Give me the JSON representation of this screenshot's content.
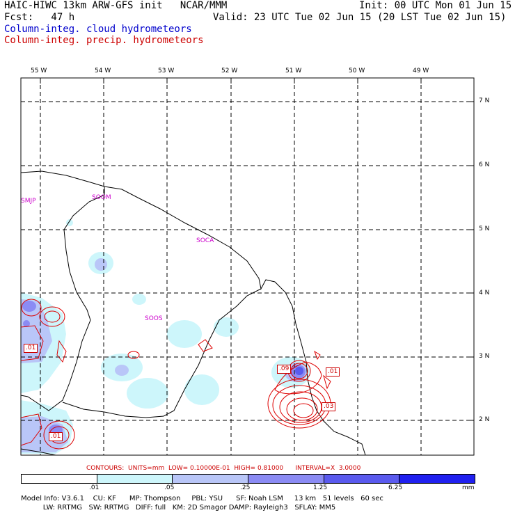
{
  "header": {
    "model": "HAIC-HIWC 13km ARW-GFS init   NCAR/MMM",
    "init": "Init: 00 UTC Mon 01 Jun 15",
    "fcst": "Fcst:   47 h",
    "valid": "Valid: 23 UTC Tue 02 Jun 15 (20 LST Tue 02 Jun 15)",
    "field1": "Column-integ. cloud hydrometeors",
    "field2": "Column-integ. precip. hydrometeors",
    "field1_color": "#0000cc",
    "field2_color": "#cc0000"
  },
  "axes": {
    "lon_labels": [
      "55 W",
      "54 W",
      "53 W",
      "52 W",
      "51 W",
      "50 W",
      "49 W"
    ],
    "lat_labels": [
      "7 N",
      "6 N",
      "5 N",
      "4 N",
      "3 N",
      "2 N"
    ]
  },
  "stations": [
    "SMJP",
    "SOOM",
    "SOCA",
    "SOOS"
  ],
  "contour_labels": [
    ".01",
    ".09",
    ".01",
    ".03",
    ".01"
  ],
  "contour_info": "CONTOURS:  UNITS=mm  LOW= 0.10000E-01  HIGH= 0.81000      INTERVAL=X  3.0000",
  "colorbar": {
    "ticks": [
      ".01",
      ".05",
      ".25",
      "1.25",
      "6.25"
    ],
    "units": "mm",
    "colors": [
      "#ffffff",
      "#cdf6fb",
      "#b9c6f8",
      "#8b8bf4",
      "#5a5aee",
      "#2020f0"
    ]
  },
  "footer": {
    "line1": "Model Info: V3.6.1    CU: KF      MP: Thompson     PBL: YSU      SF: Noah LSM     13 km   51 levels   60 sec",
    "line2": "          LW: RRTMG   SW: RRTMG   DIFF: full   KM: 2D Smagor DAMP: Rayleigh3   SFLAY: MM5"
  }
}
